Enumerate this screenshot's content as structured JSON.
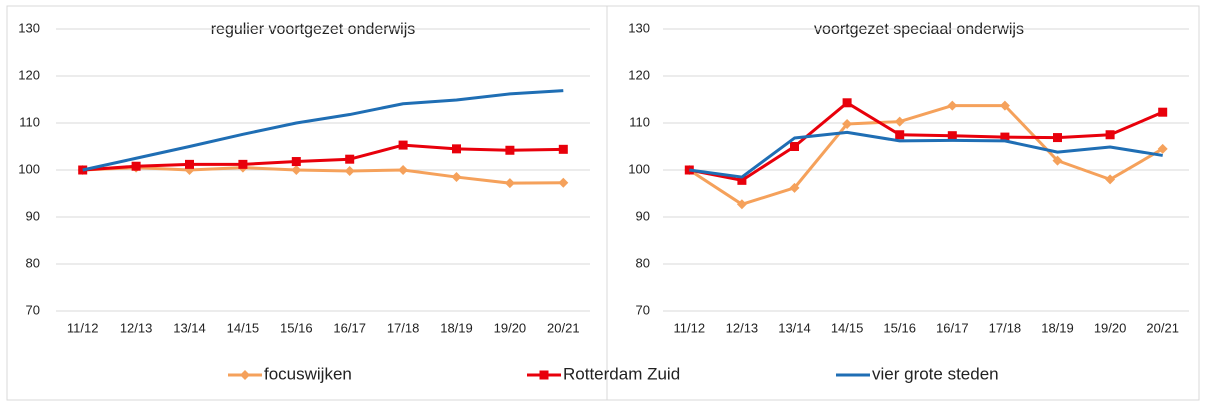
{
  "chart_data": [
    {
      "type": "line",
      "title": "regulier voortgezet onderwijs",
      "categories": [
        "11/12",
        "12/13",
        "13/14",
        "14/15",
        "15/16",
        "16/17",
        "17/18",
        "18/19",
        "19/20",
        "20/21"
      ],
      "ylim": [
        70,
        130
      ],
      "yticks": [
        70,
        80,
        90,
        100,
        110,
        120,
        130
      ],
      "grid": true,
      "series": [
        {
          "name": "focuswijken",
          "color": "#f5a15b",
          "marker": "diamond",
          "values": [
            100,
            100.5,
            100,
            100.5,
            100,
            99.8,
            100,
            98.5,
            97.2,
            97.3
          ]
        },
        {
          "name": "Rotterdam Zuid",
          "color": "#e8000b",
          "marker": "square",
          "values": [
            100,
            100.8,
            101.2,
            101.2,
            101.8,
            102.3,
            105.3,
            104.5,
            104.2,
            104.4
          ]
        },
        {
          "name": "vier grote steden",
          "color": "#1f6eb4",
          "marker": "none",
          "values": [
            100,
            102.5,
            105,
            107.6,
            110,
            111.8,
            114.1,
            114.9,
            116.2,
            116.9
          ]
        }
      ]
    },
    {
      "type": "line",
      "title": "voortgezet speciaal onderwijs",
      "categories": [
        "11/12",
        "12/13",
        "13/14",
        "14/15",
        "15/16",
        "16/17",
        "17/18",
        "18/19",
        "19/20",
        "20/21"
      ],
      "ylim": [
        70,
        130
      ],
      "yticks": [
        70,
        80,
        90,
        100,
        110,
        120,
        130
      ],
      "grid": true,
      "series": [
        {
          "color": "#f5a15b",
          "marker": "diamond",
          "values": [
            100,
            92.7,
            96.2,
            109.8,
            110.3,
            113.7,
            113.7,
            102,
            98,
            104.5
          ]
        },
        {
          "color": "#e8000b",
          "marker": "square",
          "values": [
            100,
            97.8,
            105,
            114.3,
            107.5,
            107.3,
            107,
            106.9,
            107.5,
            112.3
          ]
        },
        {
          "color": "#1f6eb4",
          "marker": "none",
          "values": [
            100,
            98.5,
            106.8,
            108,
            106.2,
            106.3,
            106.2,
            103.8,
            104.9,
            103.1
          ]
        }
      ]
    }
  ]
}
